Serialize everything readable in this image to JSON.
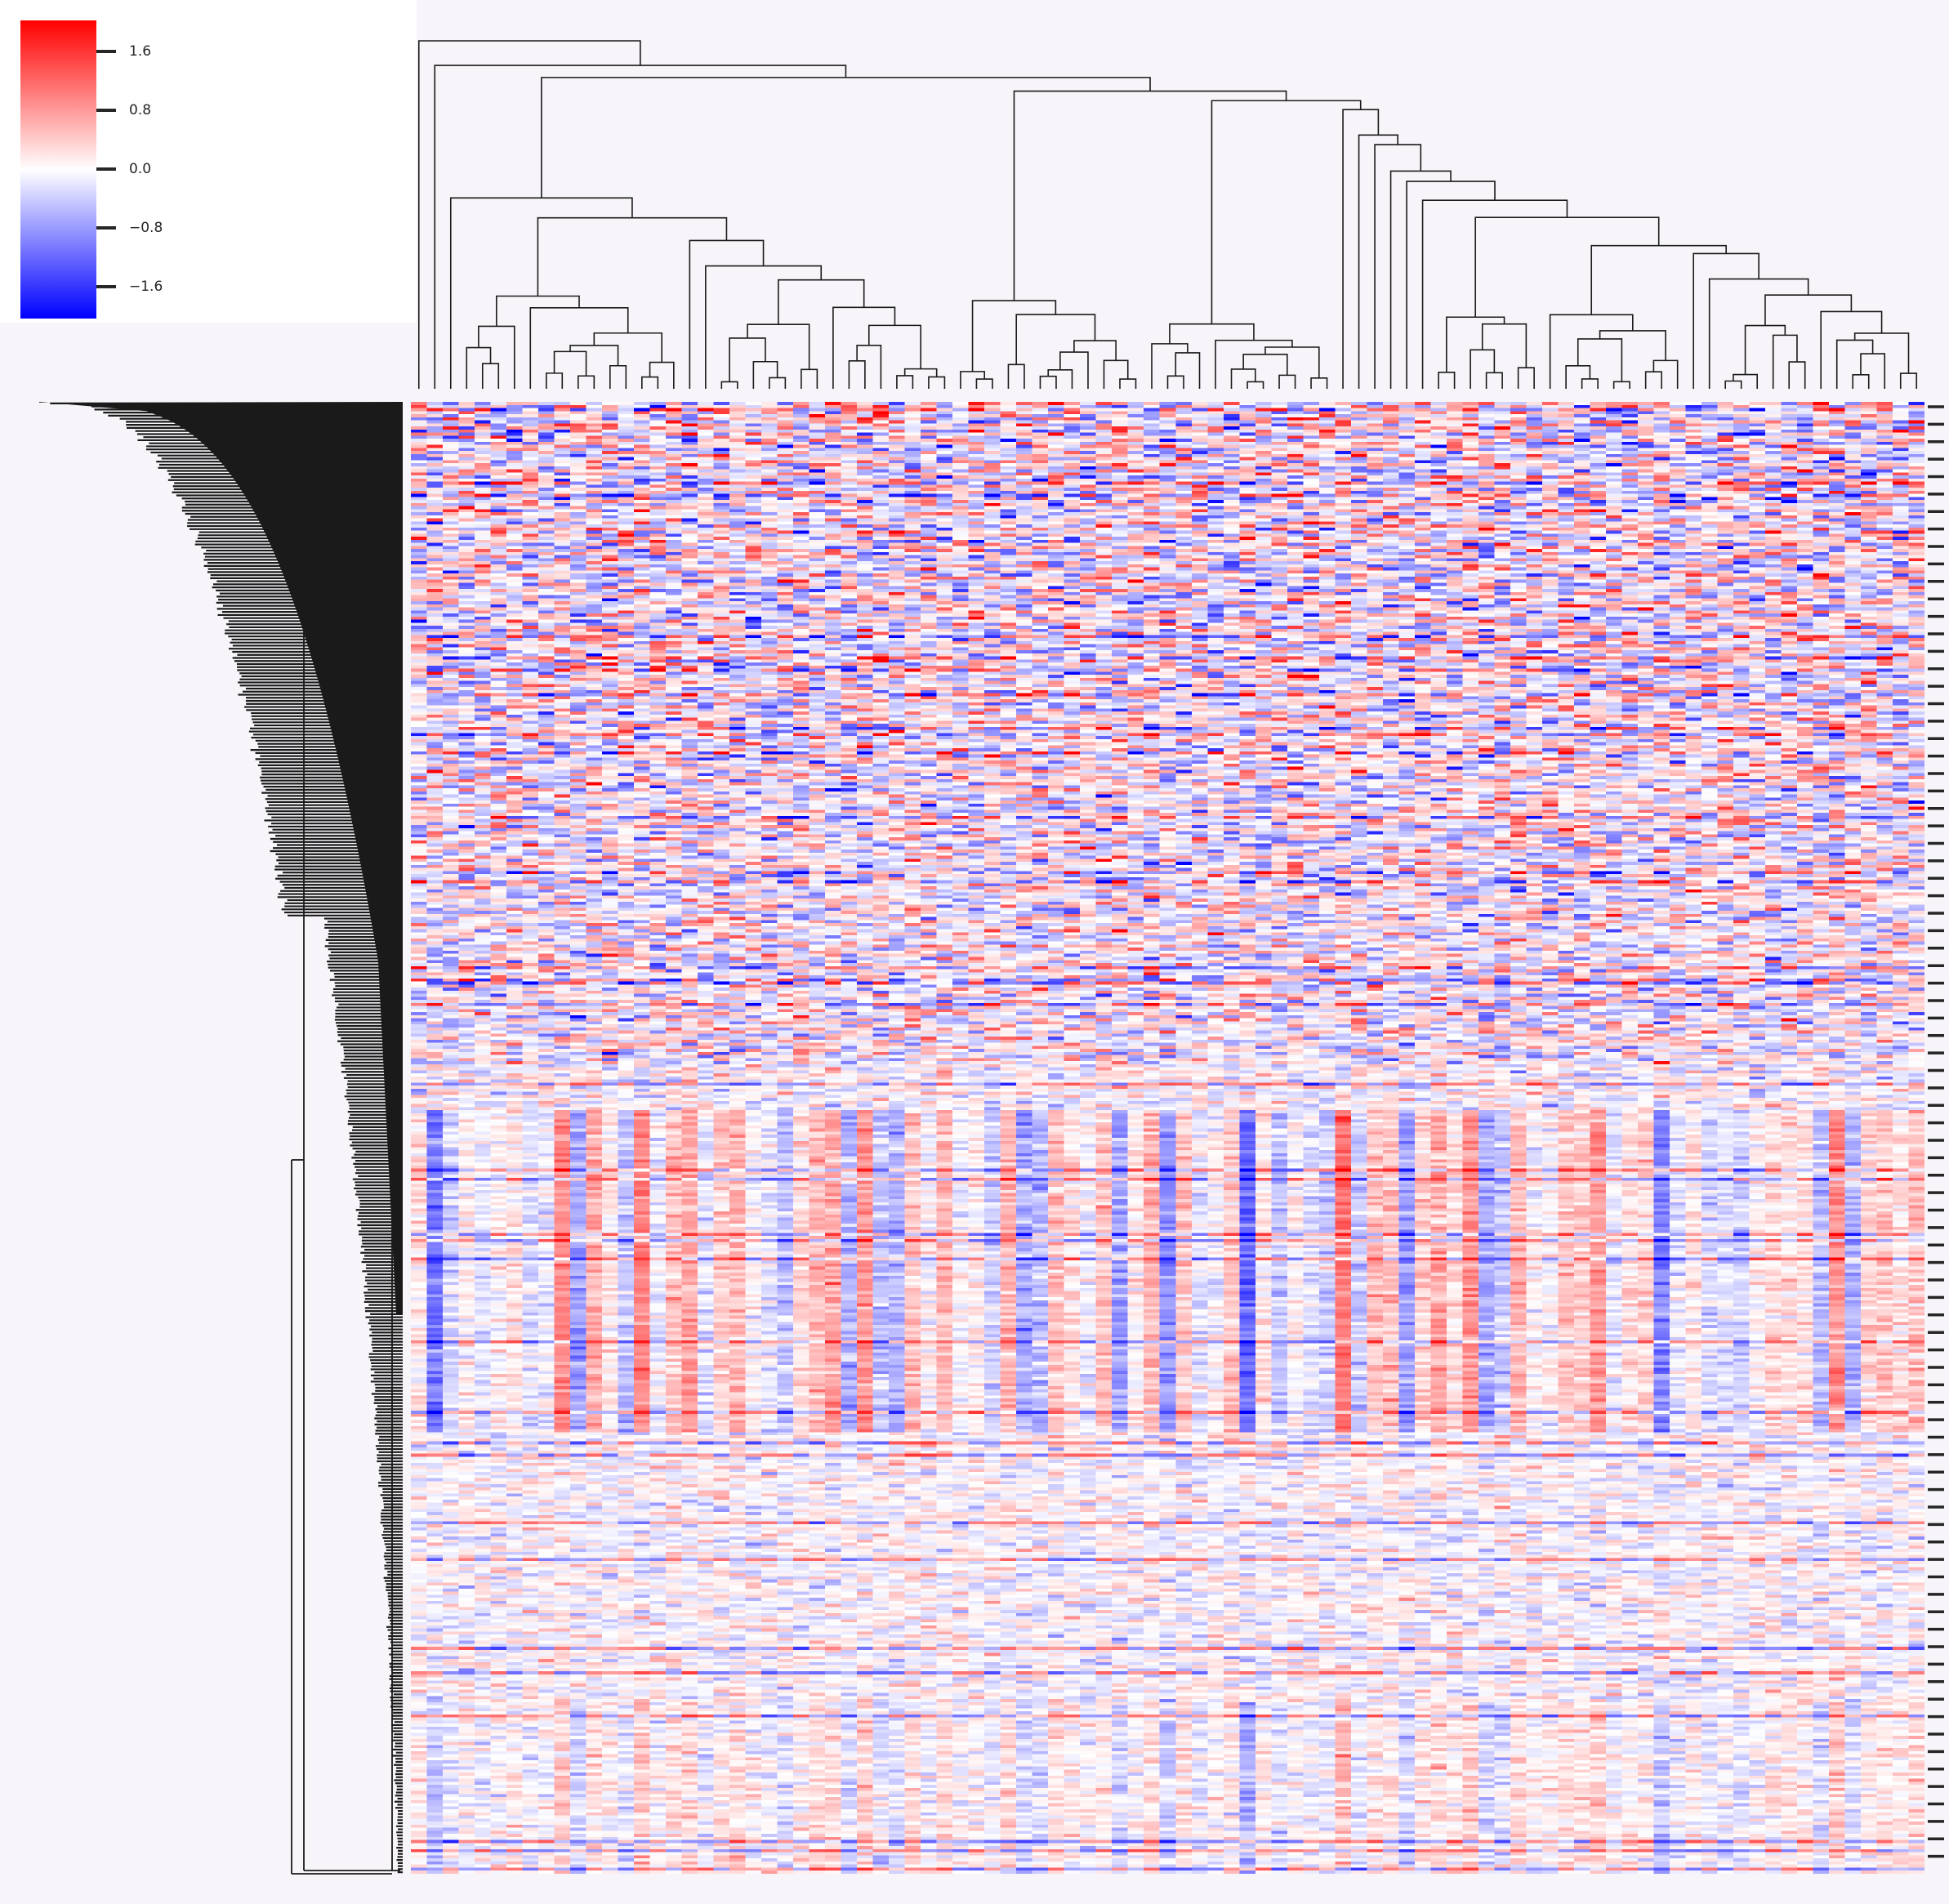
{
  "chart_data": {
    "type": "heatmap",
    "title": "",
    "xlabel": "",
    "ylabel": "",
    "colormap": {
      "name": "bwr",
      "low_color": "#0000ff",
      "mid_color": "#ffffff",
      "high_color": "#ff0000",
      "vmin": -1.9,
      "vmax": 1.9
    },
    "colorbar": {
      "ticks": [
        1.6,
        0.8,
        0.0,
        -0.8,
        -1.6
      ],
      "tick_labels": [
        "1.6",
        "0.8",
        "0.0",
        "−0.8",
        "−1.6"
      ]
    },
    "n_columns": 95,
    "n_rows": 480,
    "row_dendrogram": true,
    "column_dendrogram": true,
    "row_tick_labels_shown": false,
    "column_tick_labels_shown": false
  },
  "colors": {
    "background": "#f7f5f9",
    "legend_panel": "#ffffff",
    "dendrogram_line": "#1a1a1a",
    "tick_color": "#262626"
  }
}
